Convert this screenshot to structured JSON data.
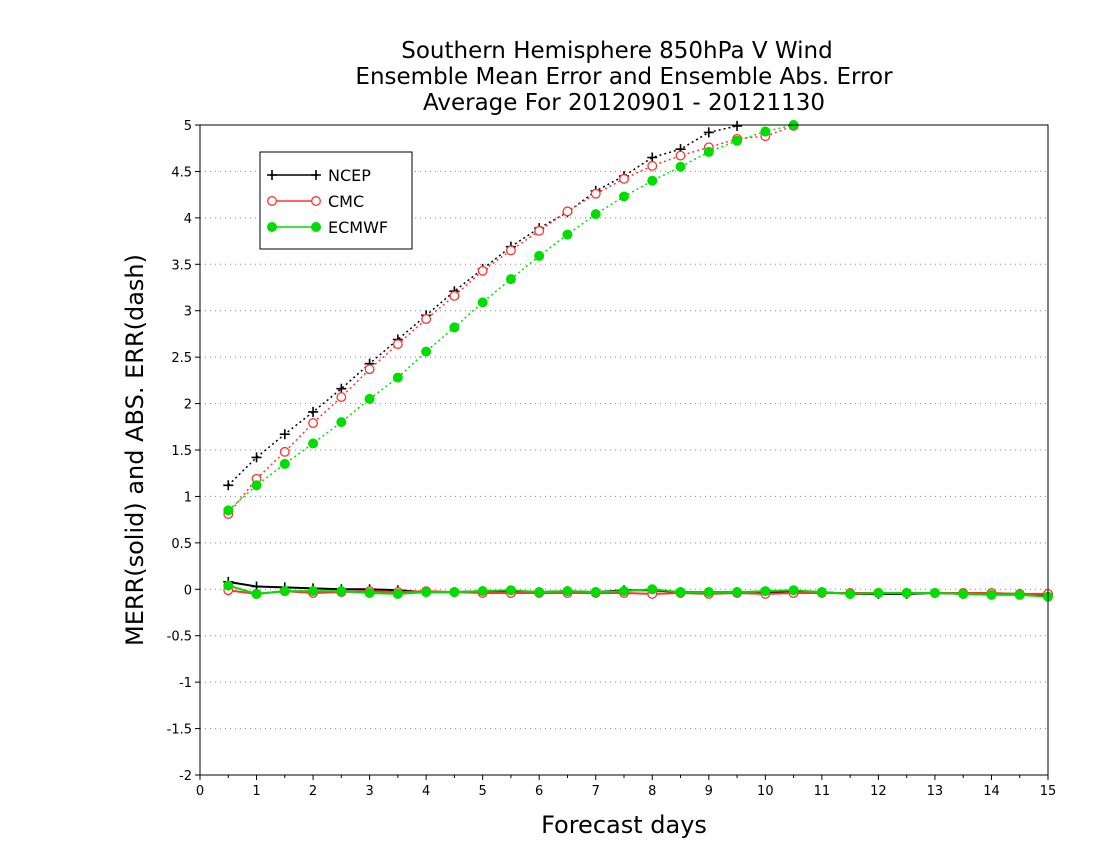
{
  "chart_data": {
    "type": "line",
    "title": [
      "Southern Hemisphere 850hPa V Wind",
      "Ensemble Mean Error and Ensemble Abs. Error",
      "Average For 20120901 - 20121130"
    ],
    "xlabel": "Forecast days",
    "ylabel": "MERR(solid) and ABS. ERR(dash)",
    "xlim": [
      0,
      15
    ],
    "ylim": [
      -2,
      5
    ],
    "x_ticks": [
      0,
      1,
      2,
      3,
      4,
      5,
      6,
      7,
      8,
      9,
      10,
      11,
      12,
      13,
      14,
      15
    ],
    "x_tick_labels": [
      "0",
      "1",
      "2",
      "3",
      "4",
      "5",
      "6",
      "7",
      "8",
      "9",
      "10",
      "11",
      "12",
      "13",
      "14",
      "15"
    ],
    "y_ticks": [
      -2,
      -1.5,
      -1,
      -0.5,
      0,
      0.5,
      1,
      1.5,
      2,
      2.5,
      3,
      3.5,
      4,
      4.5,
      5
    ],
    "y_tick_labels": [
      "-2",
      "-1.5",
      "-1",
      "-0.5",
      "0",
      "0.5",
      "1",
      "1.5",
      "2",
      "2.5",
      "3",
      "3.5",
      "4",
      "4.5",
      "5"
    ],
    "grid": "horizontal dotted",
    "legend_position": "top-left",
    "x": [
      0.5,
      1,
      1.5,
      2,
      2.5,
      3,
      3.5,
      4,
      4.5,
      5,
      5.5,
      6,
      6.5,
      7,
      7.5,
      8,
      8.5,
      9,
      9.5,
      10,
      10.5,
      11,
      11.5,
      12,
      12.5,
      13,
      13.5,
      14,
      14.5,
      15
    ],
    "series": [
      {
        "name": "NCEP",
        "color": "#000000",
        "marker": "plus",
        "abs_error": [
          1.12,
          1.42,
          1.67,
          1.91,
          2.16,
          2.43,
          2.69,
          2.95,
          3.21,
          3.45,
          3.69,
          3.89,
          4.06,
          4.29,
          4.45,
          4.65,
          4.74,
          4.92,
          4.99,
          5.02,
          5.05,
          5.05
        ],
        "mean_error": [
          0.08,
          0.03,
          0.02,
          0.01,
          0.0,
          0.0,
          -0.01,
          -0.03,
          -0.03,
          -0.02,
          -0.02,
          -0.03,
          -0.02,
          -0.03,
          -0.01,
          -0.01,
          -0.03,
          -0.03,
          -0.03,
          -0.03,
          -0.02,
          -0.03,
          -0.05,
          -0.05,
          -0.05,
          -0.04,
          -0.05,
          -0.05,
          -0.05,
          -0.06
        ]
      },
      {
        "name": "CMC",
        "color": "#ff3333",
        "marker": "open-circle",
        "abs_error": [
          0.81,
          1.19,
          1.48,
          1.79,
          2.07,
          2.37,
          2.64,
          2.91,
          3.16,
          3.43,
          3.65,
          3.86,
          4.07,
          4.26,
          4.42,
          4.56,
          4.67,
          4.76,
          4.85,
          4.88,
          4.99,
          5.02
        ],
        "mean_error": [
          -0.01,
          -0.05,
          -0.02,
          -0.04,
          -0.03,
          -0.02,
          -0.03,
          -0.02,
          -0.03,
          -0.04,
          -0.04,
          -0.04,
          -0.04,
          -0.04,
          -0.04,
          -0.05,
          -0.04,
          -0.05,
          -0.04,
          -0.05,
          -0.04,
          -0.04,
          -0.04,
          -0.04,
          -0.04,
          -0.04,
          -0.04,
          -0.04,
          -0.05,
          -0.05
        ]
      },
      {
        "name": "ECMWF",
        "color": "#00dd00",
        "marker": "filled-circle",
        "abs_error": [
          0.85,
          1.12,
          1.35,
          1.57,
          1.8,
          2.05,
          2.28,
          2.56,
          2.82,
          3.09,
          3.34,
          3.59,
          3.82,
          4.04,
          4.23,
          4.4,
          4.55,
          4.71,
          4.83,
          4.93,
          5.0,
          5.05
        ],
        "mean_error": [
          0.04,
          -0.05,
          -0.02,
          -0.02,
          -0.02,
          -0.04,
          -0.05,
          -0.03,
          -0.03,
          -0.02,
          -0.01,
          -0.03,
          -0.02,
          -0.03,
          -0.02,
          0.0,
          -0.03,
          -0.03,
          -0.03,
          -0.02,
          -0.01,
          -0.03,
          -0.05,
          -0.04,
          -0.04,
          -0.04,
          -0.05,
          -0.06,
          -0.06,
          -0.08
        ]
      }
    ]
  }
}
